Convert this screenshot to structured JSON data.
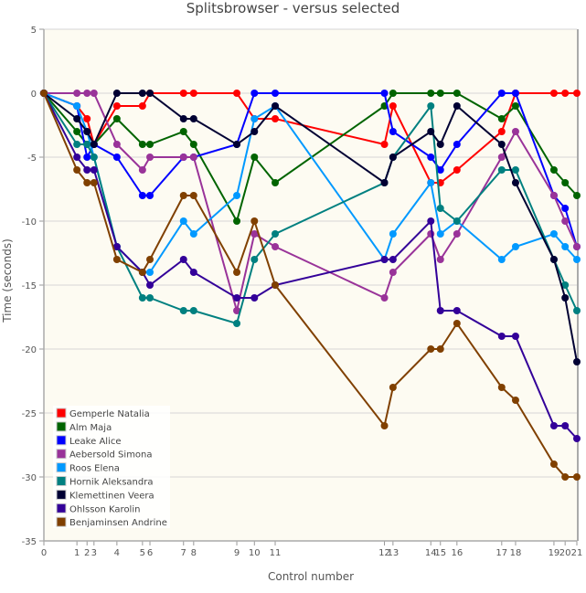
{
  "chart_data": {
    "type": "line",
    "title": "Splitsbrowser - versus selected",
    "xlabel": "Control number",
    "ylabel": "Time (seconds)",
    "ylim": [
      -35,
      5
    ],
    "yticks": [
      5,
      0,
      -5,
      -10,
      -15,
      -20,
      -25,
      -30,
      -35
    ],
    "grid": true,
    "legend_position": "bottom-left",
    "controls": [
      "0",
      "1",
      "2",
      "3",
      "4",
      "5",
      "6",
      "7",
      "8",
      "9",
      "10",
      "11",
      "12",
      "13",
      "14",
      "15",
      "16",
      "17",
      "18",
      "19",
      "20",
      "21"
    ],
    "x_positions_percent_of_course": [
      0,
      6.2,
      8.1,
      9.4,
      13.7,
      18.5,
      19.9,
      26.2,
      28.1,
      36.2,
      39.5,
      43.4,
      63.9,
      65.5,
      72.6,
      74.4,
      77.5,
      85.9,
      88.5,
      95.7,
      97.8,
      100
    ],
    "series": [
      {
        "name": "Gemperle Natalia",
        "color": "#ff0000",
        "values": [
          0,
          -1,
          -2,
          -4,
          -1,
          -1,
          0,
          0,
          0,
          0,
          -2,
          -2,
          -4,
          -1,
          -7,
          -7,
          -6,
          -3,
          0,
          0,
          0,
          0
        ]
      },
      {
        "name": "Alm Maja",
        "color": "#006400",
        "values": [
          0,
          -3,
          -4,
          -4,
          -2,
          -4,
          -4,
          -3,
          -4,
          -10,
          -5,
          -7,
          -1,
          0,
          0,
          0,
          0,
          -2,
          -1,
          -6,
          -7,
          -8
        ]
      },
      {
        "name": "Leake Alice",
        "color": "#0000ff",
        "values": [
          0,
          -1,
          -5,
          -4,
          -5,
          -8,
          -8,
          -5,
          -5,
          -4,
          0,
          0,
          0,
          -3,
          -5,
          -6,
          -4,
          0,
          0,
          -8,
          -9,
          -12
        ]
      },
      {
        "name": "Aebersold Simona",
        "color": "#993399",
        "values": [
          0,
          0,
          0,
          0,
          -4,
          -6,
          -5,
          -5,
          -5,
          -17,
          -11,
          -12,
          -16,
          -14,
          -11,
          -13,
          -11,
          -5,
          -3,
          -8,
          -10,
          -12
        ]
      },
      {
        "name": "Roos Elena",
        "color": "#0099ff",
        "values": [
          0,
          -1,
          -3,
          -5,
          -12,
          -14,
          -14,
          -10,
          -11,
          -8,
          -2,
          -1,
          -13,
          -11,
          -7,
          -11,
          -10,
          -13,
          -12,
          -11,
          -12,
          -13
        ]
      },
      {
        "name": "Hornik Aleksandra",
        "color": "#008080",
        "values": [
          0,
          -4,
          -4,
          -5,
          -12,
          -16,
          -16,
          -17,
          -17,
          -18,
          -13,
          -11,
          -7,
          -5,
          -1,
          -9,
          -10,
          -6,
          -6,
          -13,
          -15,
          -17
        ]
      },
      {
        "name": "Klemettinen Veera",
        "color": "#000033",
        "values": [
          0,
          -2,
          -3,
          -4,
          0,
          0,
          0,
          -2,
          -2,
          -4,
          -3,
          -1,
          -7,
          -5,
          -3,
          -4,
          -1,
          -4,
          -7,
          -13,
          -16,
          -21
        ]
      },
      {
        "name": "Ohlsson Karolin",
        "color": "#330099",
        "values": [
          0,
          -5,
          -6,
          -6,
          -12,
          -14,
          -15,
          -13,
          -14,
          -16,
          -16,
          -15,
          -13,
          -13,
          -10,
          -17,
          -17,
          -19,
          -19,
          -26,
          -26,
          -27
        ]
      },
      {
        "name": "Benjaminsen Andrine",
        "color": "#804000",
        "values": [
          0,
          -6,
          -7,
          -7,
          -13,
          -14,
          -13,
          -8,
          -8,
          -14,
          -10,
          -15,
          -26,
          -23,
          -20,
          -20,
          -18,
          -23,
          -24,
          -29,
          -30,
          -30
        ]
      }
    ]
  }
}
